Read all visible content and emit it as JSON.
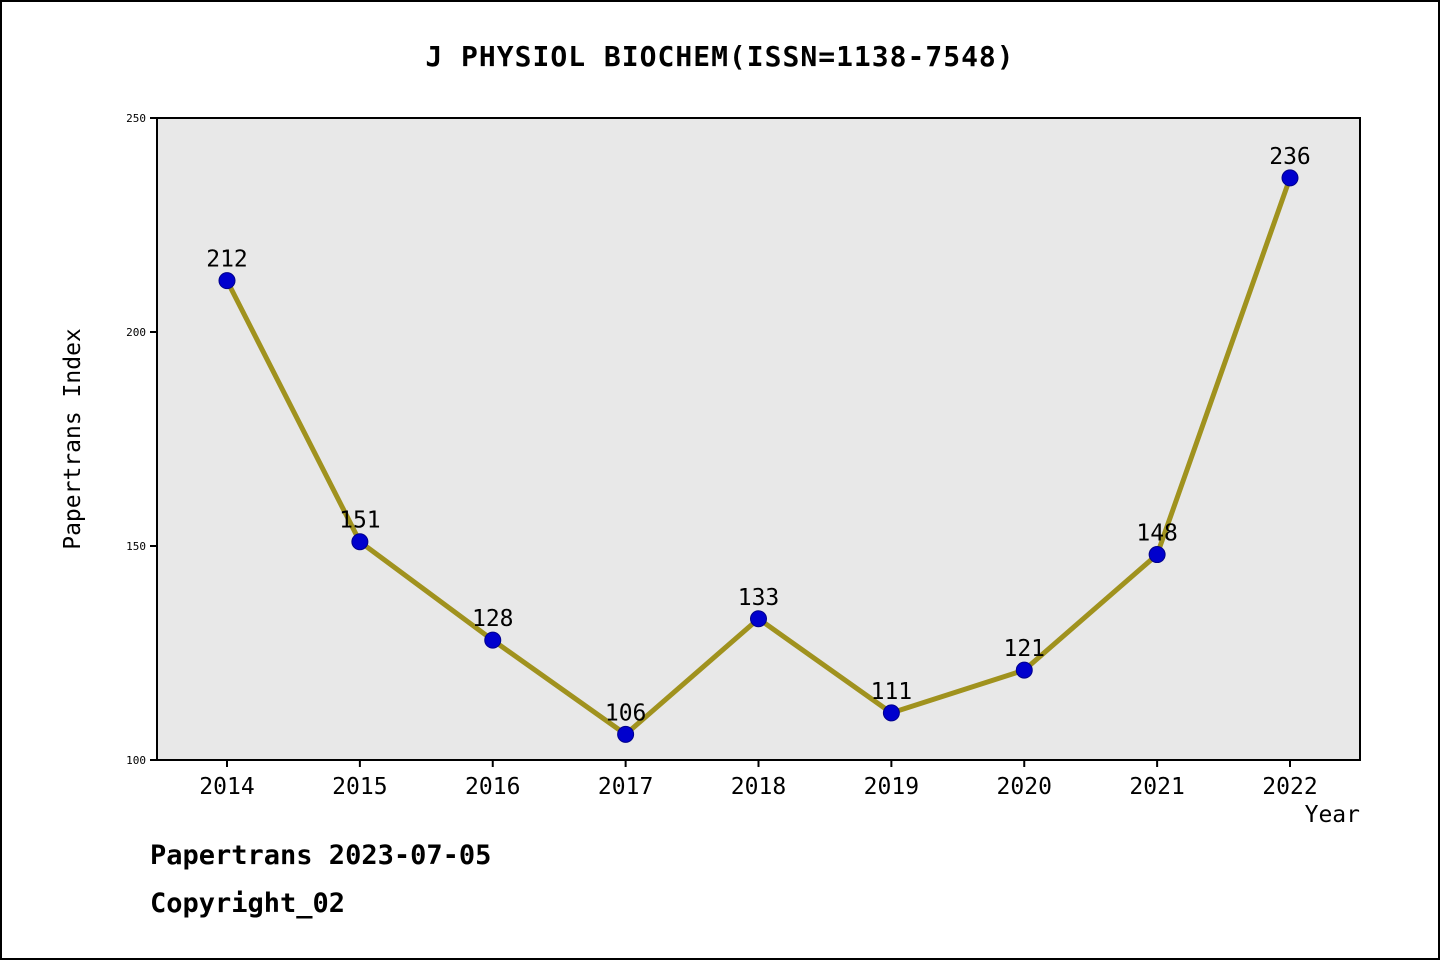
{
  "chart": {
    "title": "J PHYSIOL BIOCHEM(ISSN=1138-7548)",
    "footer_date": "Papertrans 2023-07-05",
    "footer_copyright": "Copyright_02"
  },
  "chart_data": {
    "type": "line",
    "title": "J PHYSIOL BIOCHEM(ISSN=1138-7548)",
    "x": [
      2014,
      2015,
      2016,
      2017,
      2018,
      2019,
      2020,
      2021,
      2022
    ],
    "values": [
      212,
      151,
      128,
      106,
      133,
      111,
      121,
      148,
      236
    ],
    "xlabel": "Year",
    "ylabel": "Papertrans Index",
    "ylim": [
      100,
      250
    ],
    "yticks": [
      100,
      150,
      200,
      250
    ],
    "grid": false,
    "legend_position": "none",
    "line_color": "#a0921e",
    "marker_color": "#0000cd",
    "marker_edge_color": "#00008b",
    "plot_background": "#e8e8e8",
    "axis_color": "#000000"
  }
}
